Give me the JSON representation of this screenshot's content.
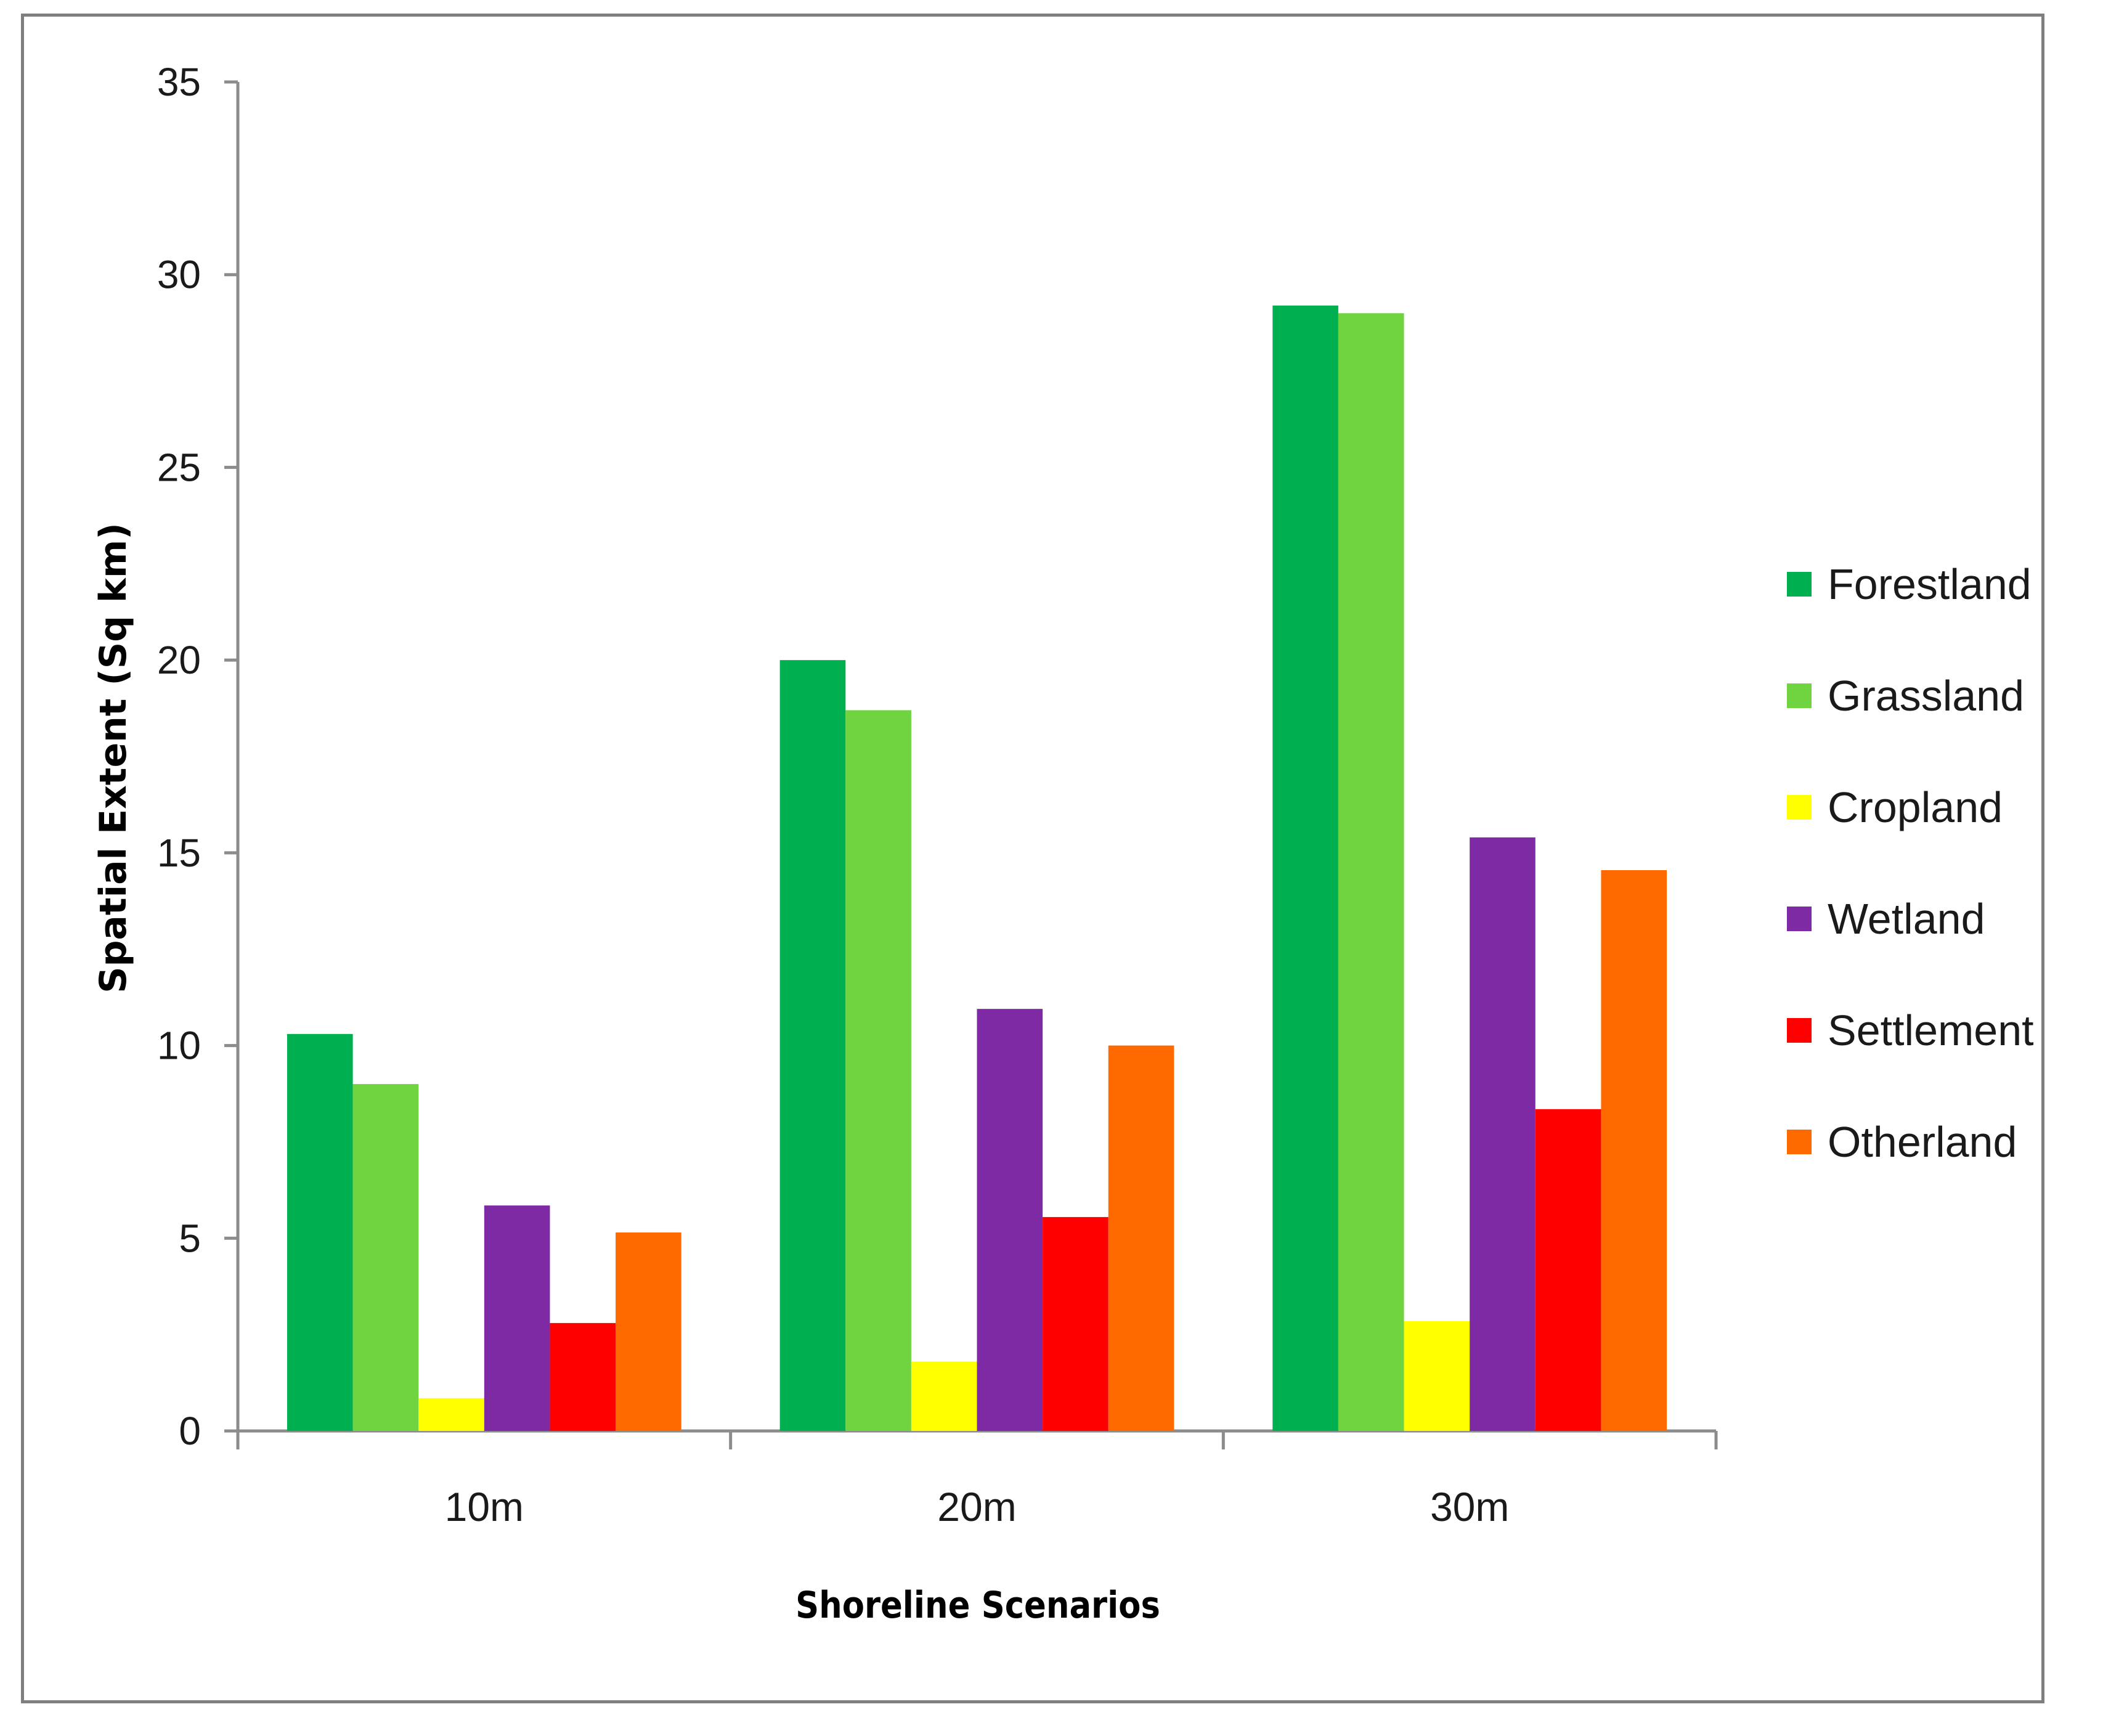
{
  "chart_data": {
    "type": "bar",
    "title": "",
    "xlabel": "Shoreline Scenarios",
    "ylabel": "Spatial Extent (Sq km)",
    "categories": [
      "10m",
      "20m",
      "30m"
    ],
    "ylim": [
      0,
      35
    ],
    "yticks": [
      0,
      5,
      10,
      15,
      20,
      25,
      30,
      35
    ],
    "grid": false,
    "legend_position": "right",
    "series": [
      {
        "name": "Forestland",
        "color": "#00b050",
        "values": [
          10.3,
          20.0,
          29.2
        ]
      },
      {
        "name": "Grassland",
        "color": "#6fd43f",
        "values": [
          9.0,
          18.7,
          29.0
        ]
      },
      {
        "name": "Cropland",
        "color": "#ffff00",
        "values": [
          0.85,
          1.8,
          2.85
        ]
      },
      {
        "name": "Wetland",
        "color": "#7f2aa5",
        "values": [
          5.85,
          10.95,
          15.4
        ]
      },
      {
        "name": "Settlement",
        "color": "#ff0000",
        "values": [
          2.8,
          5.55,
          8.35
        ]
      },
      {
        "name": "Otherland",
        "color": "#ff6a00",
        "values": [
          5.15,
          10.0,
          14.55
        ]
      }
    ]
  }
}
